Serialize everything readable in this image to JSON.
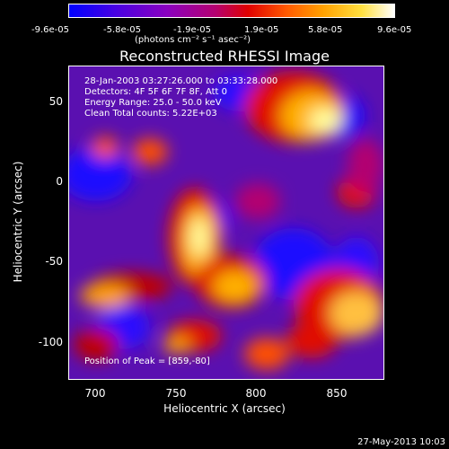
{
  "colorbar": {
    "ticks": [
      "-9.6e-05",
      "-5.8e-05",
      "-1.9e-05",
      "1.9e-05",
      "5.8e-05",
      "9.6e-05"
    ],
    "units": "(photons cm⁻² s⁻¹ asec⁻²)"
  },
  "chart_data": {
    "type": "heatmap",
    "title": "Reconstructed RHESSI Image",
    "xlabel": "Heliocentric X (arcsec)",
    "ylabel": "Heliocentric Y (arcsec)",
    "xlim": [
      682,
      877
    ],
    "ylim": [
      -122,
      72
    ],
    "x_ticks": [
      700,
      750,
      800,
      850
    ],
    "y_ticks": [
      50,
      0,
      -50,
      -100
    ],
    "colorbar_range": [
      -9.6e-05,
      9.6e-05
    ],
    "colormap": [
      "#0000ff",
      "#4b00e0",
      "#8a00c0",
      "#b40070",
      "#e00000",
      "#ff5a00",
      "#ffa000",
      "#ffe040",
      "#ffffff"
    ],
    "annotations": [
      "28-Jan-2003 03:27:26.000 to 03:33:28.000",
      "Detectors: 4F 5F 6F 7F 8F, Att 0",
      "Energy Range: 25.0 - 50.0 keV",
      "Clean    Total counts: 5.22E+03",
      "Position of Peak = [859,-80]"
    ],
    "peak_position": [
      859,
      -80
    ]
  },
  "footer": "27-May-2013 10:03"
}
